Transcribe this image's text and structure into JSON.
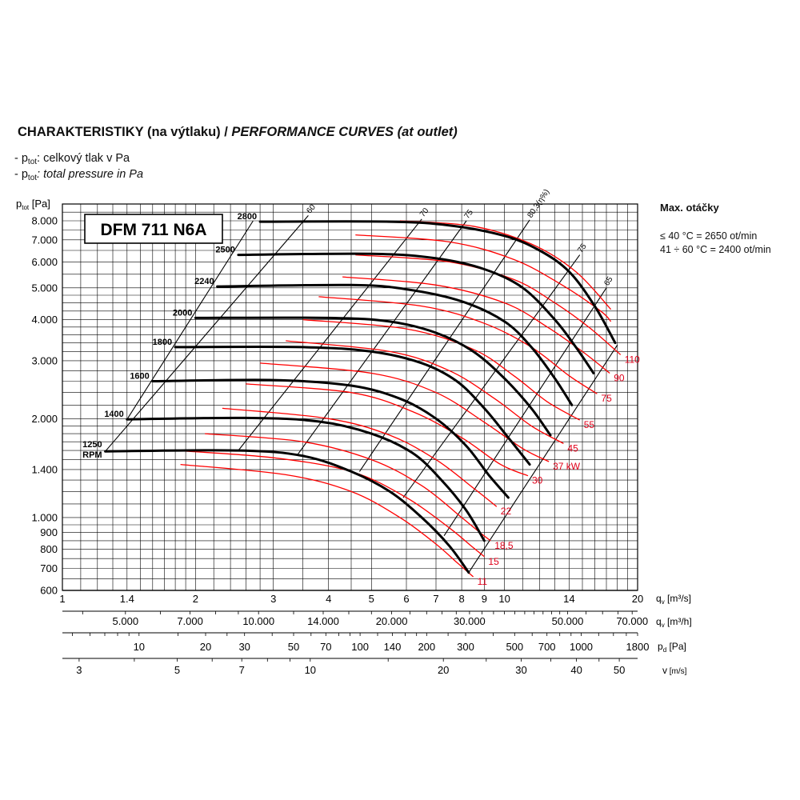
{
  "title": {
    "main": "CHARAKTERISTIKY (na výtlaku) / ",
    "italic": "PERFORMANCE CURVES (at outlet)"
  },
  "legend": {
    "line1_prefix": "- p",
    "line1_sub": "tot",
    "line1_text": ": celkový tlak v Pa",
    "line2_prefix": "- p",
    "line2_sub": "tot",
    "line2_text": ": total pressure in Pa"
  },
  "max_speed": {
    "title": "Max. otáčky",
    "line1": "≤ 40 °C = 2650 ot/min",
    "line2": "41 ÷ 60 °C = 2400 ot/min"
  },
  "colors": {
    "rpm_curves": "#000000",
    "power_curves": "#ff0000",
    "grid": "#000000",
    "power_labels": "#e0001a"
  },
  "chart_data": {
    "type": "line",
    "model_label": "DFM 711 N6A",
    "scale": "log-log",
    "y_label": "p",
    "y_label_sub": "tot",
    "y_label_unit": " [Pa]",
    "ylim": [
      600,
      9000
    ],
    "xlim": [
      1,
      20
    ],
    "y_ticks": [
      "8.000",
      "7.000",
      "6.000",
      "5.000",
      "4.000",
      "3.000",
      "2.000",
      "1.400",
      "1.000",
      "900",
      "800",
      "700",
      "600"
    ],
    "y_tick_values": [
      8000,
      7000,
      6000,
      5000,
      4000,
      3000,
      2000,
      1400,
      1000,
      900,
      800,
      700,
      600
    ],
    "axis_qv_m3s": {
      "unit_main": "q",
      "unit_sub": "v",
      "unit_rest": " [m³/s]",
      "labels": [
        "1",
        "1.4",
        "2",
        "3",
        "4",
        "5",
        "6",
        "7",
        "8",
        "9",
        "10",
        "14",
        "20"
      ],
      "values": [
        1,
        1.4,
        2,
        3,
        4,
        5,
        6,
        7,
        8,
        9,
        10,
        14,
        20
      ]
    },
    "axis_qv_m3h": {
      "unit_main": "q",
      "unit_sub": "v",
      "unit_rest": " [m³/h]",
      "labels": [
        "5.000",
        "7.000",
        "10.000",
        "14.000",
        "20.000",
        "30.000",
        "50.000",
        "70.000"
      ],
      "values": [
        5000,
        7000,
        10000,
        14000,
        20000,
        30000,
        50000,
        70000
      ]
    },
    "axis_pd": {
      "unit_main": "p",
      "unit_sub": "d",
      "unit_rest": " [Pa]",
      "labels": [
        "10",
        "20",
        "30",
        "50",
        "70",
        "100",
        "140",
        "200",
        "300",
        "500",
        "700",
        "1000",
        "1800"
      ],
      "values": [
        10,
        20,
        30,
        50,
        70,
        100,
        140,
        200,
        300,
        500,
        700,
        1000,
        1800
      ]
    },
    "axis_v": {
      "unit_main": "v",
      "unit_rest": " [m/s]",
      "labels": [
        "3",
        "5",
        "7",
        "10",
        "20",
        "30",
        "40",
        "50"
      ],
      "values": [
        3,
        5,
        7,
        10,
        20,
        30,
        40,
        50
      ]
    },
    "rpm_curves": [
      {
        "label": "2800",
        "points": [
          [
            2.8,
            7950
          ],
          [
            5.5,
            7950
          ],
          [
            7.5,
            7750
          ],
          [
            10,
            7200
          ],
          [
            12,
            6500
          ],
          [
            14,
            5600
          ],
          [
            16,
            4400
          ],
          [
            17.8,
            3400
          ]
        ]
      },
      {
        "label": "2500",
        "points": [
          [
            2.5,
            6300
          ],
          [
            5,
            6350
          ],
          [
            7,
            6150
          ],
          [
            9,
            5700
          ],
          [
            11,
            5000
          ],
          [
            13,
            4000
          ],
          [
            14.5,
            3300
          ],
          [
            15.9,
            2750
          ]
        ]
      },
      {
        "label": "2240",
        "points": [
          [
            2.24,
            5050
          ],
          [
            4.5,
            5100
          ],
          [
            6,
            4950
          ],
          [
            8,
            4550
          ],
          [
            10,
            3950
          ],
          [
            11.5,
            3300
          ],
          [
            13,
            2650
          ],
          [
            14.2,
            2200
          ]
        ]
      },
      {
        "label": "2000",
        "points": [
          [
            2,
            4050
          ],
          [
            4,
            4050
          ],
          [
            5.5,
            3950
          ],
          [
            7,
            3650
          ],
          [
            8.5,
            3200
          ],
          [
            10,
            2650
          ],
          [
            11.5,
            2150
          ],
          [
            12.7,
            1780
          ]
        ]
      },
      {
        "label": "1800",
        "points": [
          [
            1.8,
            3300
          ],
          [
            3.5,
            3300
          ],
          [
            5,
            3200
          ],
          [
            6.5,
            2950
          ],
          [
            7.8,
            2600
          ],
          [
            9,
            2150
          ],
          [
            10.2,
            1750
          ],
          [
            11.4,
            1450
          ]
        ]
      },
      {
        "label": "1600",
        "points": [
          [
            1.6,
            2600
          ],
          [
            3,
            2620
          ],
          [
            4.5,
            2520
          ],
          [
            5.8,
            2300
          ],
          [
            7,
            2000
          ],
          [
            8.2,
            1650
          ],
          [
            9.2,
            1350
          ],
          [
            10.2,
            1150
          ]
        ]
      },
      {
        "label": "1400",
        "points": [
          [
            1.4,
            1990
          ],
          [
            2.6,
            2010
          ],
          [
            3.8,
            1960
          ],
          [
            5,
            1800
          ],
          [
            6.2,
            1570
          ],
          [
            7.2,
            1300
          ],
          [
            8.2,
            1050
          ],
          [
            9,
            850
          ]
        ]
      },
      {
        "label": "1250",
        "label2": "RPM",
        "points": [
          [
            1.25,
            1590
          ],
          [
            2.5,
            1600
          ],
          [
            3.5,
            1540
          ],
          [
            4.5,
            1380
          ],
          [
            5.5,
            1200
          ],
          [
            6.5,
            1000
          ],
          [
            7.5,
            820
          ],
          [
            8.3,
            680
          ]
        ]
      }
    ],
    "power_curves": [
      {
        "label": "11",
        "points": [
          [
            1.85,
            1450
          ],
          [
            3.2,
            1350
          ],
          [
            4.5,
            1200
          ],
          [
            5.8,
            1000
          ],
          [
            7,
            830
          ],
          [
            7.8,
            730
          ],
          [
            8.5,
            660
          ]
        ]
      },
      {
        "label": "18,5",
        "points": [
          [
            2.1,
            1800
          ],
          [
            3.5,
            1700
          ],
          [
            5,
            1500
          ],
          [
            6.5,
            1250
          ],
          [
            8,
            1000
          ],
          [
            8.8,
            900
          ],
          [
            9.3,
            850
          ]
        ]
      },
      {
        "label": "15",
        "points": [
          [
            1.8,
            1600
          ],
          [
            3,
            1520
          ],
          [
            4.5,
            1380
          ],
          [
            6,
            1150
          ],
          [
            7.5,
            930
          ],
          [
            8.4,
            820
          ],
          [
            9,
            760
          ]
        ]
      },
      {
        "label": "22",
        "points": [
          [
            2.3,
            2150
          ],
          [
            4,
            2000
          ],
          [
            5.5,
            1780
          ],
          [
            7,
            1500
          ],
          [
            8.5,
            1230
          ],
          [
            9.6,
            1080
          ]
        ]
      },
      {
        "label": "30",
        "points": [
          [
            2.6,
            2550
          ],
          [
            4.5,
            2400
          ],
          [
            6.2,
            2100
          ],
          [
            8,
            1750
          ],
          [
            9.8,
            1450
          ],
          [
            11.3,
            1340
          ]
        ]
      },
      {
        "label": "37 kW",
        "points": [
          [
            2.8,
            2950
          ],
          [
            5,
            2750
          ],
          [
            7,
            2400
          ],
          [
            9,
            1950
          ],
          [
            11,
            1620
          ],
          [
            12.6,
            1480
          ]
        ]
      },
      {
        "label": "45",
        "points": [
          [
            3.2,
            3450
          ],
          [
            5.5,
            3200
          ],
          [
            7.5,
            2800
          ],
          [
            9.5,
            2300
          ],
          [
            11.5,
            1900
          ],
          [
            13.6,
            1680
          ]
        ]
      },
      {
        "label": "55",
        "points": [
          [
            3.5,
            4000
          ],
          [
            6,
            3750
          ],
          [
            8.5,
            3250
          ],
          [
            10.5,
            2700
          ],
          [
            12.5,
            2250
          ],
          [
            14.8,
            1980
          ]
        ]
      },
      {
        "label": "75",
        "points": [
          [
            3.8,
            4700
          ],
          [
            6.5,
            4400
          ],
          [
            9,
            3900
          ],
          [
            11.5,
            3300
          ],
          [
            14,
            2700
          ],
          [
            16.2,
            2380
          ]
        ]
      },
      {
        "label": "90",
        "points": [
          [
            4.3,
            5400
          ],
          [
            7,
            5100
          ],
          [
            10,
            4500
          ],
          [
            12.5,
            3800
          ],
          [
            15,
            3200
          ],
          [
            17.3,
            2750
          ]
        ]
      },
      {
        "label": "110",
        "points": [
          [
            4.6,
            6300
          ],
          [
            7.5,
            6000
          ],
          [
            10.5,
            5300
          ],
          [
            13,
            4500
          ],
          [
            15.5,
            3800
          ],
          [
            18.3,
            3130
          ]
        ]
      },
      {
        "label": "",
        "points": [
          [
            4.6,
            7250
          ],
          [
            7.5,
            6900
          ],
          [
            10.5,
            6100
          ],
          [
            13.5,
            5100
          ],
          [
            16.5,
            4250
          ],
          [
            17.4,
            3950
          ]
        ]
      },
      {
        "label": "",
        "points": [
          [
            5.8,
            8000
          ],
          [
            8.5,
            7700
          ],
          [
            11.5,
            6800
          ],
          [
            14.5,
            5600
          ],
          [
            17.4,
            4300
          ]
        ]
      }
    ],
    "efficiency_lines": [
      {
        "label": "60",
        "points": [
          [
            1.25,
            1590
          ],
          [
            3.6,
            8300
          ]
        ]
      },
      {
        "label": "70",
        "points": [
          [
            2.5,
            1600
          ],
          [
            6.5,
            8100
          ]
        ]
      },
      {
        "label": "75",
        "points": [
          [
            3.4,
            1550
          ],
          [
            8.2,
            8000
          ]
        ]
      },
      {
        "label": "80,3(η%)",
        "points": [
          [
            4.7,
            1380
          ],
          [
            11.4,
            8050
          ]
        ]
      },
      {
        "label": "75",
        "points": [
          [
            5.9,
            1150
          ],
          [
            14.8,
            6300
          ]
        ]
      },
      {
        "label": "65",
        "points": [
          [
            7.3,
            880
          ],
          [
            17,
            5000
          ]
        ]
      },
      {
        "label": "",
        "points": [
          [
            1.4,
            1990
          ],
          [
            2.7,
            8000
          ]
        ]
      },
      {
        "label": "",
        "points": [
          [
            8.3,
            680
          ],
          [
            18.0,
            3350
          ]
        ]
      }
    ]
  }
}
